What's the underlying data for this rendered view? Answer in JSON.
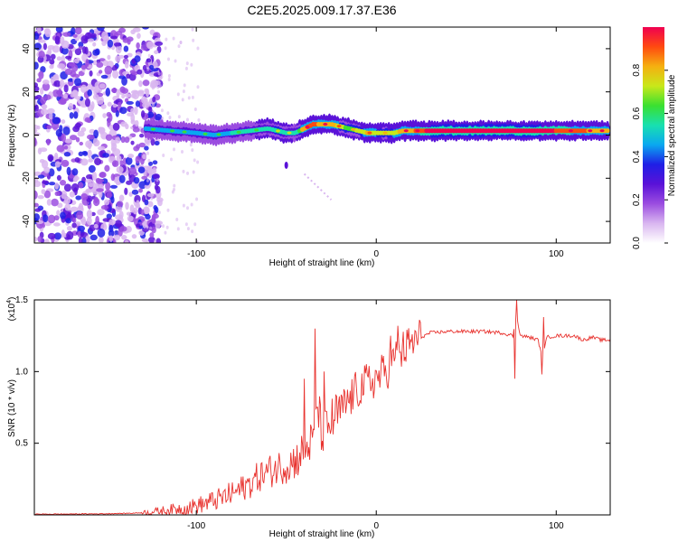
{
  "figure": {
    "title": "C2E5.2025.009.17.37.E36"
  },
  "chart_data": [
    {
      "type": "heatmap",
      "name": "spectrogram",
      "xlabel": "Height of straight line (km)",
      "ylabel": "Frequency (Hz)",
      "xlim": [
        -190,
        130
      ],
      "ylim": [
        -50,
        50
      ],
      "xticks": [
        -100,
        0,
        100
      ],
      "xtick_labels": [
        "-100",
        "0",
        "100"
      ],
      "yticks": [
        -40,
        -20,
        0,
        20,
        40
      ],
      "ytick_labels": [
        "-40",
        "-20",
        "0",
        "20",
        "40"
      ],
      "colorbar": {
        "label": "Normalized spectral amplitude",
        "range": [
          0,
          1
        ],
        "ticks": [
          0.0,
          0.2,
          0.4,
          0.6,
          0.8
        ],
        "tick_labels": [
          "0.0",
          "0.2",
          "0.4",
          "0.6",
          "0.8"
        ],
        "colors": [
          "#ffffff",
          "#d9b6f0",
          "#9b4de0",
          "#5a12d8",
          "#1f1fe6",
          "#0aa8f0",
          "#18e0b0",
          "#3ae030",
          "#c8e81a",
          "#f5b010",
          "#ff4a10",
          "#f00050"
        ]
      },
      "noise_region_x": [
        -190,
        -128
      ],
      "ridge": {
        "x": [
          -128,
          -115,
          -100,
          -90,
          -80,
          -70,
          -60,
          -55,
          -50,
          -45,
          -40,
          -35,
          -30,
          -25,
          -20,
          -15,
          -10,
          -5,
          0,
          5,
          10,
          15,
          20,
          30,
          40,
          50,
          60,
          70,
          80,
          90,
          100,
          110,
          120,
          130
        ],
        "freq": [
          3,
          2,
          1,
          0,
          1,
          2,
          3,
          2,
          1,
          1,
          3,
          5,
          5,
          5,
          4,
          3,
          2,
          1,
          1,
          1,
          1,
          2,
          2,
          2,
          2,
          2,
          2,
          2,
          2,
          2,
          2,
          2,
          2,
          2
        ],
        "amplitude": [
          0.45,
          0.5,
          0.48,
          0.45,
          0.5,
          0.5,
          0.55,
          0.6,
          0.55,
          0.5,
          0.85,
          0.9,
          0.8,
          0.85,
          0.7,
          0.65,
          0.7,
          0.8,
          0.75,
          0.7,
          0.75,
          0.8,
          0.85,
          1.0,
          1.0,
          1.0,
          1.0,
          1.0,
          1.0,
          1.0,
          0.95,
          0.9,
          0.85,
          0.8
        ]
      }
    },
    {
      "type": "line",
      "name": "snr",
      "xlabel": "Height of straight line (km)",
      "ylabel": "SNR (10 * v/v)",
      "scale_label": "(x10",
      "scale_exponent": "4",
      "scale_close": ")",
      "xlim": [
        -190,
        130
      ],
      "ylim": [
        0,
        1.5
      ],
      "xticks": [
        -100,
        0,
        100
      ],
      "xtick_labels": [
        "-100",
        "0",
        "100"
      ],
      "yticks": [
        0.5,
        1.0,
        1.5
      ],
      "ytick_labels": [
        "0.5",
        "1.0",
        "1.5"
      ],
      "color": "#e8322e",
      "series": [
        {
          "name": "SNR",
          "x": [
            -190,
            -170,
            -150,
            -135,
            -125,
            -115,
            -105,
            -95,
            -85,
            -75,
            -70,
            -65,
            -60,
            -55,
            -50,
            -45,
            -40,
            -35,
            -33,
            -30,
            -25,
            -20,
            -15,
            -10,
            -5,
            0,
            5,
            10,
            15,
            20,
            25,
            30,
            40,
            50,
            60,
            70,
            76,
            78,
            80,
            85,
            90,
            92,
            95,
            100,
            110,
            115,
            120,
            125,
            130
          ],
          "y": [
            0.005,
            0.006,
            0.008,
            0.012,
            0.02,
            0.035,
            0.05,
            0.08,
            0.12,
            0.18,
            0.22,
            0.27,
            0.3,
            0.33,
            0.35,
            0.38,
            0.45,
            0.52,
            0.8,
            0.55,
            0.65,
            0.72,
            0.8,
            0.88,
            0.92,
            0.95,
            1.0,
            1.08,
            1.15,
            1.2,
            1.24,
            1.27,
            1.28,
            1.28,
            1.28,
            1.27,
            1.25,
            1.4,
            1.25,
            1.24,
            1.22,
            1.1,
            1.24,
            1.25,
            1.25,
            1.22,
            1.24,
            1.22,
            1.22
          ]
        }
      ],
      "spikes": [
        {
          "x": -34,
          "y": 1.3
        },
        {
          "x": -29,
          "y": 1.0
        },
        {
          "x": -40,
          "y": 0.95
        },
        {
          "x": 12,
          "y": 1.32
        },
        {
          "x": 8,
          "y": 1.25
        },
        {
          "x": 78,
          "y": 1.5
        },
        {
          "x": 77,
          "y": 0.95
        },
        {
          "x": 92,
          "y": 0.98
        },
        {
          "x": 93,
          "y": 1.38
        }
      ]
    }
  ]
}
